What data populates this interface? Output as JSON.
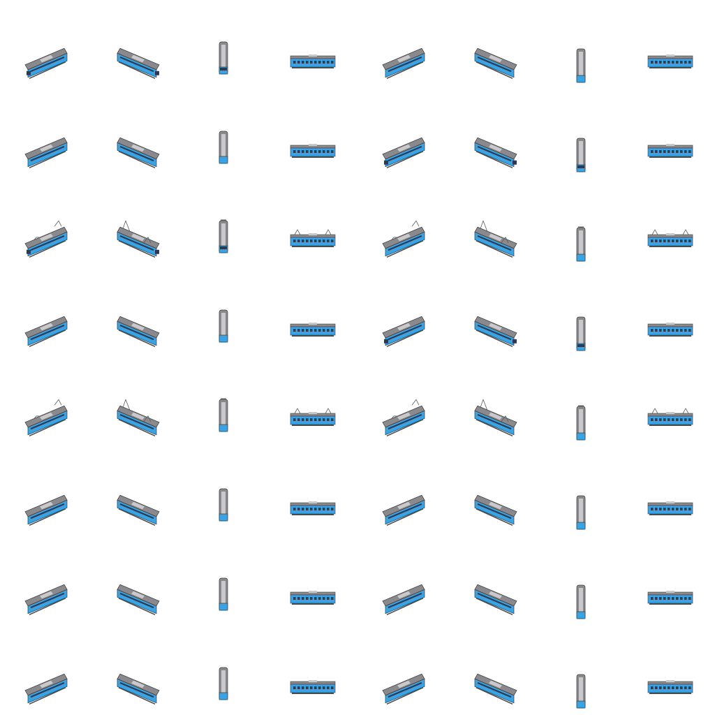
{
  "sheet": {
    "title": "",
    "background": "#ffffff",
    "grid_columns": 8,
    "grid_rows": 8
  },
  "palette": {
    "body_blue": "#3aa3e3",
    "roof_grey": "#8a8a8e",
    "roof_light": "#c9c9cc",
    "window_dark": "#2b3a55",
    "outline": "#3a3a3a",
    "underframe": "#4a4a4a",
    "pantograph": "#5a5a5a"
  },
  "orientation_columns": [
    "iso-left",
    "iso-right",
    "vertical",
    "side",
    "iso-left",
    "iso-right",
    "vertical",
    "side"
  ],
  "sprites": {
    "row_variants": [
      {
        "front_cab": true,
        "pantograph": false,
        "alt_cab_in_second_half": false
      },
      {
        "front_cab": false,
        "pantograph": false,
        "alt_cab_in_second_half": true
      },
      {
        "front_cab": true,
        "pantograph": true,
        "alt_cab_in_second_half": false
      },
      {
        "front_cab": false,
        "pantograph": false,
        "alt_cab_in_second_half": true
      },
      {
        "front_cab": false,
        "pantograph": true,
        "alt_cab_in_second_half": false
      },
      {
        "front_cab": false,
        "pantograph": false,
        "alt_cab_in_second_half": false
      },
      {
        "front_cab": false,
        "pantograph": false,
        "alt_cab_in_second_half": false
      },
      {
        "front_cab": false,
        "pantograph": false,
        "alt_cab_in_second_half": false
      }
    ]
  }
}
